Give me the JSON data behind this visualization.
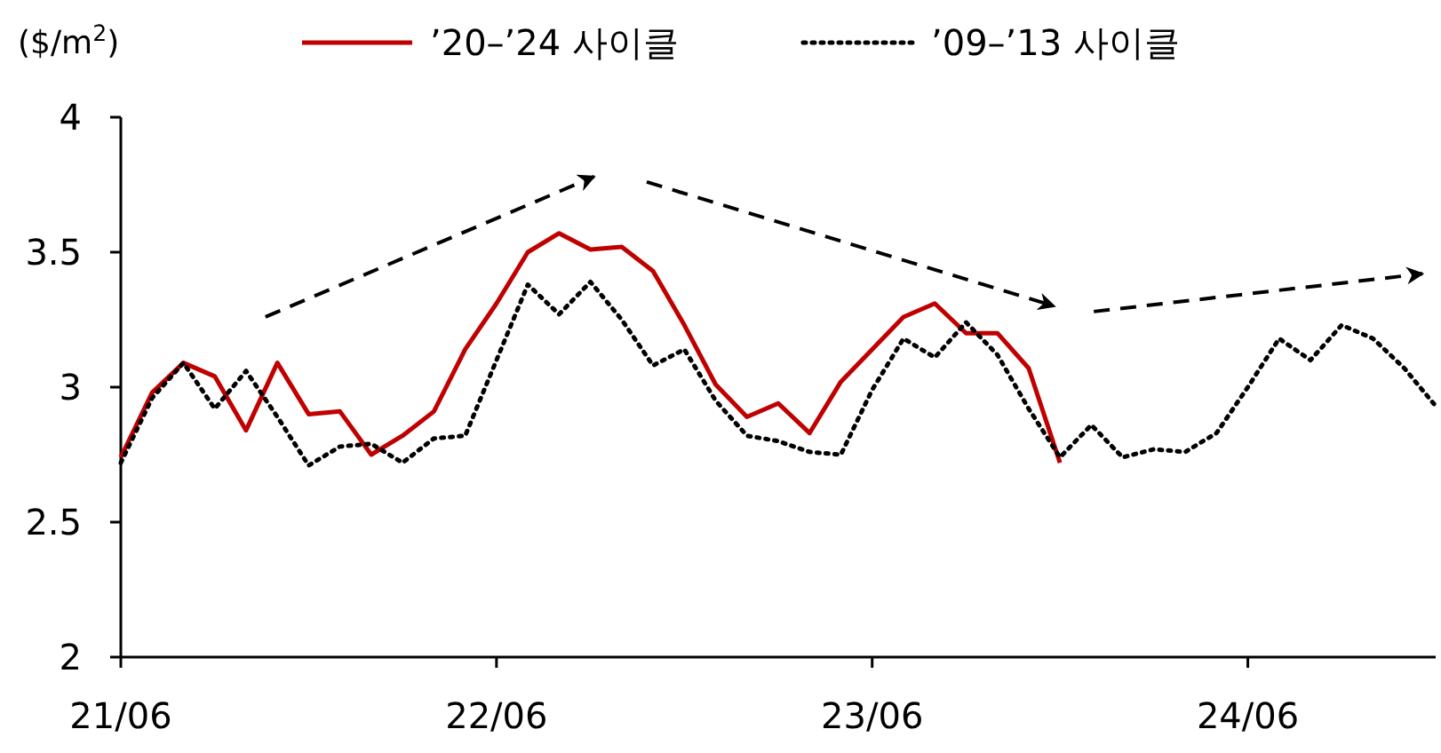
{
  "chart_data": {
    "type": "line",
    "ylabel": "($/m$^{2}$)",
    "legend": "top",
    "x": [
      "2021-06",
      "2021-07",
      "2021-08",
      "2021-09",
      "2021-10",
      "2021-11",
      "2021-12",
      "2022-01",
      "2022-02",
      "2022-03",
      "2022-04",
      "2022-05",
      "2022-06",
      "2022-07",
      "2022-08",
      "2022-09",
      "2022-10",
      "2022-11",
      "2022-12",
      "2023-01",
      "2023-02",
      "2023-03",
      "2023-04",
      "2023-05",
      "2023-06",
      "2023-07",
      "2023-08",
      "2023-09",
      "2023-10",
      "2023-11",
      "2023-12",
      "2024-01",
      "2024-02",
      "2024-03",
      "2024-04",
      "2024-05",
      "2024-06",
      "2024-07",
      "2024-08",
      "2024-09",
      "2024-10",
      "2024-11",
      "2024-12"
    ],
    "series": [
      {
        "name": "’20–’24 사이클",
        "color": "#c00000",
        "line_style": "solid",
        "values": [
          2.74,
          2.98,
          3.09,
          3.04,
          2.84,
          3.09,
          2.9,
          2.91,
          2.75,
          2.82,
          2.91,
          3.14,
          3.31,
          3.5,
          3.57,
          3.51,
          3.52,
          3.43,
          3.23,
          3.01,
          2.89,
          2.94,
          2.83,
          3.02,
          3.14,
          3.26,
          3.31,
          3.2,
          3.2,
          3.07,
          2.72,
          null,
          null,
          null,
          null,
          null,
          null,
          null,
          null,
          null,
          null,
          null,
          null
        ]
      },
      {
        "name": "’09–’13 사이클",
        "color": "#000000",
        "line_style": "dotted",
        "values": [
          2.72,
          2.96,
          3.09,
          2.92,
          3.06,
          2.89,
          2.71,
          2.78,
          2.79,
          2.72,
          2.81,
          2.82,
          3.1,
          3.38,
          3.27,
          3.39,
          3.25,
          3.08,
          3.14,
          2.95,
          2.82,
          2.8,
          2.76,
          2.75,
          2.99,
          3.18,
          3.11,
          3.24,
          3.12,
          2.92,
          2.74,
          2.86,
          2.74,
          2.77,
          2.76,
          2.83,
          3.0,
          3.18,
          3.1,
          3.23,
          3.18,
          3.07,
          2.93
        ]
      }
    ],
    "xlim": [
      "2021-06",
      "2024-12"
    ],
    "xticks": [
      {
        "value": "2021-06",
        "label": "21/06"
      },
      {
        "value": "2022-06",
        "label": "22/06"
      },
      {
        "value": "2023-06",
        "label": "23/06"
      },
      {
        "value": "2024-06",
        "label": "24/06"
      }
    ],
    "ylim": [
      2,
      4
    ],
    "yticks": [
      {
        "value": 2,
        "label": "2"
      },
      {
        "value": 2.5,
        "label": "2.5"
      },
      {
        "value": 3,
        "label": "3"
      },
      {
        "value": 3.5,
        "label": "3.5"
      },
      {
        "value": 4,
        "label": "4"
      }
    ],
    "grid": false
  }
}
